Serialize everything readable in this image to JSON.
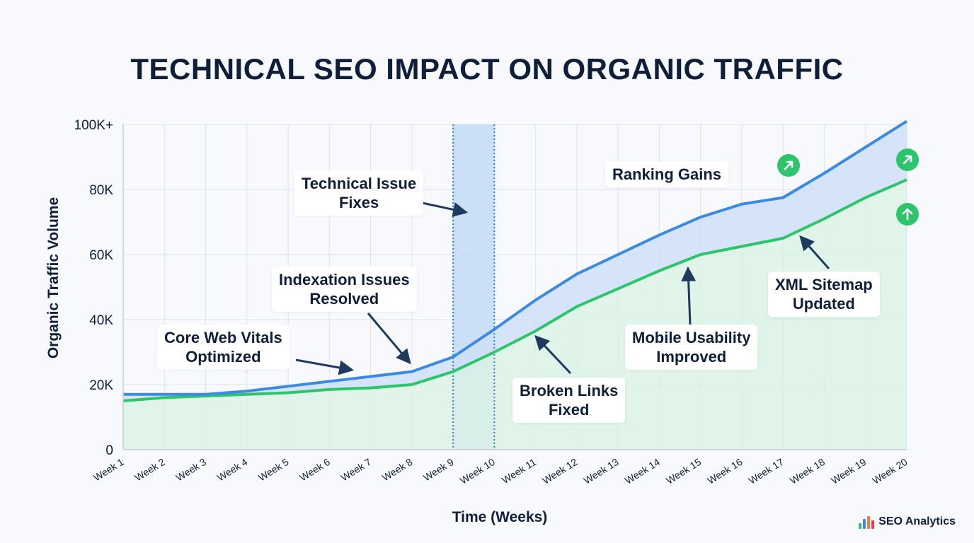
{
  "chart_data": {
    "type": "area",
    "title": "TECHNICAL SEO IMPACT ON ORGANIC TRAFFIC",
    "xlabel": "Time (Weeks)",
    "ylabel": "Organic Traffic Volume",
    "ylim": [
      0,
      100000
    ],
    "yticks": [
      {
        "value": 0,
        "label": "0"
      },
      {
        "value": 20000,
        "label": "20K"
      },
      {
        "value": 40000,
        "label": "40K"
      },
      {
        "value": 60000,
        "label": "60K"
      },
      {
        "value": 80000,
        "label": "80K"
      },
      {
        "value": 100000,
        "label": "100K+"
      }
    ],
    "categories": [
      "Week 1",
      "Week 2",
      "Week 3",
      "Week 4",
      "Week 5",
      "Week 6",
      "Week 7",
      "Week 8",
      "Week 9",
      "Week 10",
      "Week 11",
      "Week 12",
      "Week 13",
      "Week 14",
      "Week 15",
      "Week 16",
      "Week 17",
      "Week 18",
      "Week 19",
      "Week 20"
    ],
    "series": [
      {
        "color": "#3d8be0",
        "fill": "#cfe1f8",
        "values": [
          17000,
          17000,
          17000,
          18000,
          19500,
          21000,
          22500,
          24000,
          28500,
          37000,
          46000,
          54000,
          60000,
          66000,
          71500,
          75500,
          77500,
          85000,
          93000,
          101000
        ]
      },
      {
        "color": "#2ec46b",
        "fill": "#daf3e3",
        "values": [
          15000,
          16000,
          16500,
          17000,
          17500,
          18500,
          19000,
          20000,
          24000,
          30000,
          36500,
          44000,
          49500,
          55000,
          60000,
          62500,
          65000,
          71000,
          77500,
          83000
        ]
      }
    ],
    "highlight_band": {
      "from": "Week 9",
      "to": "Week 10",
      "color": "#bcd6f5"
    },
    "grid": true,
    "annotations": [
      {
        "text": [
          "Technical Issue",
          "Fixes"
        ]
      },
      {
        "text": [
          "Ranking Gains"
        ]
      },
      {
        "text": [
          "Indexation Issues",
          "Resolved"
        ]
      },
      {
        "text": [
          "Core Web Vitals",
          "Optimized"
        ]
      },
      {
        "text": [
          "XML Sitemap",
          "Updated"
        ]
      },
      {
        "text": [
          "Mobile Usability",
          "Improved"
        ]
      },
      {
        "text": [
          "Broken Links",
          "Fixed"
        ]
      }
    ],
    "trend_badges": [
      {
        "icon": "arrow-up-right-icon"
      },
      {
        "icon": "arrow-up-right-icon"
      },
      {
        "icon": "arrow-up-icon"
      }
    ]
  },
  "brand": {
    "name": "SEO Analytics",
    "colors": [
      "#2ec46b",
      "#3d8be0",
      "#f07b3a",
      "#e0405a"
    ]
  },
  "theme": {
    "text": "#0f1f3a",
    "grid": "#dde3ec",
    "axis": "#c5cdd8",
    "arrow": "#1e3a5f",
    "badge": "#2ec46b"
  }
}
